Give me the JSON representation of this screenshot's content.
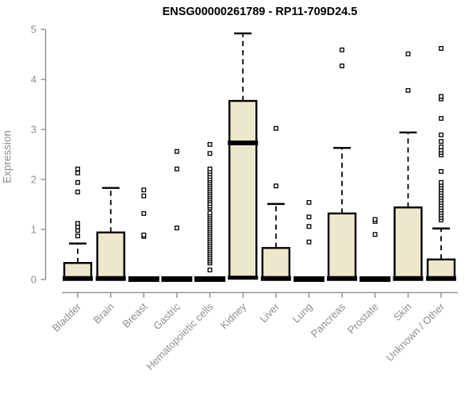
{
  "chart_data": {
    "type": "boxplot",
    "title": "ENSG00000261789 - RP11-709D24.5",
    "ylabel": "Expression",
    "xlabel": "",
    "ylim": [
      0,
      5
    ],
    "yticks": [
      0,
      1,
      2,
      3,
      4,
      5
    ],
    "grid": false,
    "legend": "none",
    "colors": {
      "box_fill": "#EDE7CC",
      "box_stroke": "#000000",
      "median": "#000000",
      "whisker": "#000000",
      "outlier_stroke": "#000000",
      "outlier_fill": "#ffffff",
      "axis": "#858585",
      "tick_label": "#8e8e8e",
      "title": "#000000",
      "background": "#ffffff"
    },
    "categories": [
      "Bladder",
      "Brain",
      "Breast",
      "Gastric",
      "Hematopoietic cells",
      "Kidney",
      "Liver",
      "Lung",
      "Pancreas",
      "Prostate",
      "Skin",
      "Unknown / Other"
    ],
    "series": [
      {
        "label": "Bladder",
        "q1": 0,
        "median": 0.02,
        "q3": 0.33,
        "whisker_low": 0,
        "whisker_high": 0.72,
        "outliers": [
          0.87,
          0.98,
          1.05,
          1.12,
          1.75,
          1.94,
          2.13,
          2.21
        ]
      },
      {
        "label": "Brain",
        "q1": 0,
        "median": 0.02,
        "q3": 0.94,
        "whisker_low": 0,
        "whisker_high": 1.83,
        "outliers": []
      },
      {
        "label": "Breast",
        "q1": 0,
        "median": 0,
        "q3": 0.02,
        "whisker_low": 0,
        "whisker_high": 0.02,
        "outliers": [
          0.86,
          0.89,
          1.32,
          1.67,
          1.79
        ]
      },
      {
        "label": "Gastric",
        "q1": 0,
        "median": 0,
        "q3": 0.02,
        "whisker_low": 0,
        "whisker_high": 0.02,
        "outliers": [
          1.03,
          2.21,
          2.56
        ]
      },
      {
        "label": "Hematopoietic cells",
        "q1": 0,
        "median": 0,
        "q3": 0.02,
        "whisker_low": 0,
        "whisker_high": 0.02,
        "outliers": [
          0.19,
          0.33,
          0.37,
          0.41,
          0.45,
          0.49,
          0.53,
          0.57,
          0.61,
          0.65,
          0.69,
          0.73,
          0.77,
          0.81,
          0.85,
          0.89,
          0.93,
          0.97,
          1.01,
          1.05,
          1.09,
          1.13,
          1.17,
          1.21,
          1.25,
          1.29,
          1.33,
          1.43,
          1.47,
          1.52,
          1.57,
          1.61,
          1.65,
          1.69,
          1.73,
          1.77,
          1.81,
          1.85,
          1.89,
          1.93,
          1.97,
          2.01,
          2.06,
          2.11,
          2.16,
          2.21,
          2.52,
          2.7
        ]
      },
      {
        "label": "Kidney",
        "q1": 0.02,
        "median": 2.73,
        "q3": 3.57,
        "whisker_low": 0,
        "whisker_high": 4.92,
        "outliers": []
      },
      {
        "label": "Liver",
        "q1": 0,
        "median": 0.02,
        "q3": 0.63,
        "whisker_low": 0,
        "whisker_high": 1.51,
        "outliers": [
          1.87,
          3.02
        ]
      },
      {
        "label": "Lung",
        "q1": 0,
        "median": 0,
        "q3": 0.02,
        "whisker_low": 0,
        "whisker_high": 0.02,
        "outliers": [
          0.75,
          1.06,
          1.25,
          1.54
        ]
      },
      {
        "label": "Pancreas",
        "q1": 0,
        "median": 0.02,
        "q3": 1.32,
        "whisker_low": 0,
        "whisker_high": 2.63,
        "outliers": [
          4.27,
          4.59
        ]
      },
      {
        "label": "Prostate",
        "q1": 0,
        "median": 0,
        "q3": 0.02,
        "whisker_low": 0,
        "whisker_high": 0.02,
        "outliers": [
          0.9,
          1.16,
          1.2
        ]
      },
      {
        "label": "Skin",
        "q1": 0,
        "median": 0.02,
        "q3": 1.44,
        "whisker_low": 0,
        "whisker_high": 2.94,
        "outliers": [
          3.78,
          4.51
        ]
      },
      {
        "label": "Unknown / Other",
        "q1": 0,
        "median": 0.02,
        "q3": 0.4,
        "whisker_low": 0,
        "whisker_high": 1.02,
        "outliers": [
          1.19,
          1.24,
          1.29,
          1.34,
          1.39,
          1.44,
          1.49,
          1.54,
          1.59,
          1.64,
          1.69,
          1.74,
          1.79,
          1.84,
          1.89,
          1.94,
          2.16,
          2.49,
          2.54,
          2.59,
          2.65,
          2.76,
          2.89,
          3.22,
          3.61,
          3.66,
          4.62
        ]
      }
    ]
  }
}
